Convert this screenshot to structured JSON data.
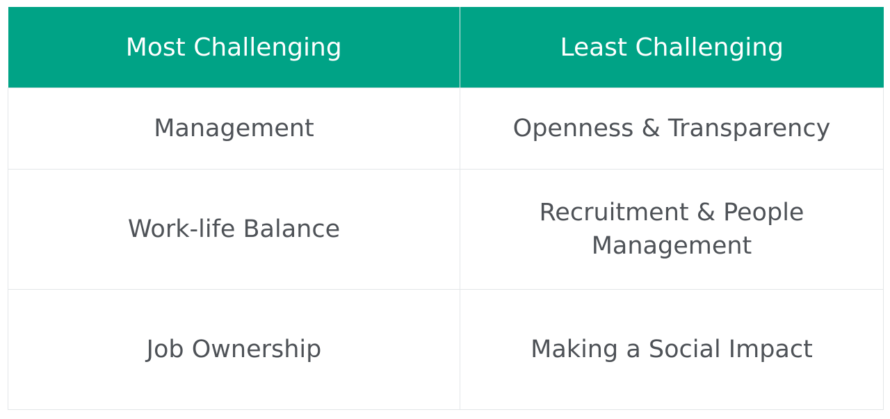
{
  "table": {
    "headers": [
      "Most Challenging",
      "Least Challenging"
    ],
    "rows": [
      [
        "Management",
        "Openness & Transparency"
      ],
      [
        "Work-life Balance",
        "Recruitment & People Management"
      ],
      [
        "Job Ownership",
        "Making a Social Impact"
      ]
    ]
  },
  "colors": {
    "header_background": "#00a386",
    "header_text": "#ffffff",
    "cell_text": "#4e5257",
    "border": "#e3e6e8"
  }
}
